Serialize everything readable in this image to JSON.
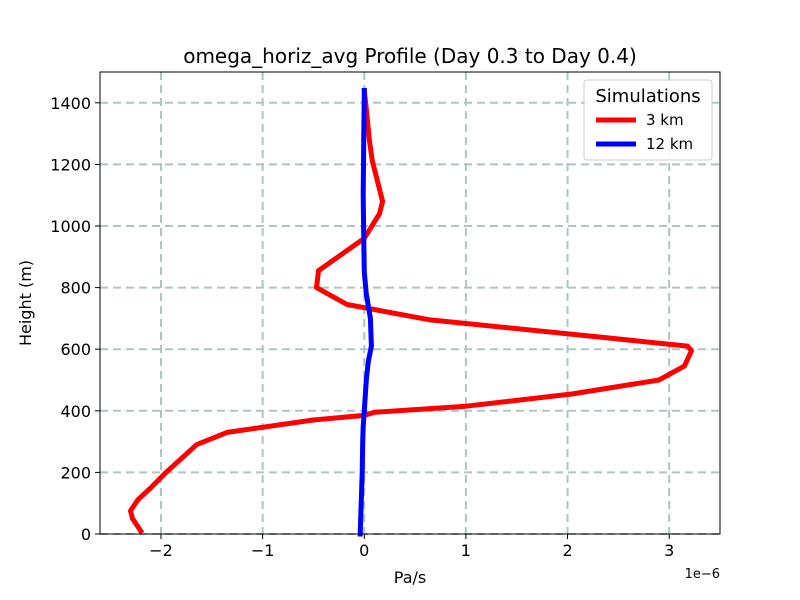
{
  "chart_data": {
    "type": "line",
    "title": "omega_horiz_avg Profile (Day 0.3 to Day 0.4)",
    "xlabel": "Pa/s",
    "ylabel": "Height (m)",
    "x_offset_label": "1e−6",
    "x_scale": 1e-06,
    "xlim": [
      -2.6,
      3.5
    ],
    "ylim": [
      0,
      1500
    ],
    "xticks": [
      -2,
      -1,
      0,
      1,
      2,
      3
    ],
    "xtick_labels": [
      "−2",
      "−1",
      "0",
      "1",
      "2",
      "3"
    ],
    "yticks": [
      0,
      200,
      400,
      600,
      800,
      1000,
      1200,
      1400
    ],
    "ytick_labels": [
      "0",
      "200",
      "400",
      "600",
      "800",
      "1000",
      "1200",
      "1400"
    ],
    "grid": true,
    "legend_title": "Simulations",
    "legend_position": "top-right",
    "series": [
      {
        "name": "3 km",
        "color": "#ff0000",
        "x": [
          -2.2,
          -2.28,
          -2.3,
          -2.23,
          -2.1,
          -1.95,
          -1.65,
          -1.35,
          -0.5,
          0.0,
          0.1,
          1.0,
          2.05,
          2.9,
          3.15,
          3.22,
          3.18,
          2.3,
          0.65,
          -0.17,
          -0.47,
          -0.45,
          0.0,
          0.15,
          0.18,
          0.08,
          0.05,
          0.02,
          0.0
        ],
        "y": [
          10,
          50,
          75,
          110,
          150,
          200,
          290,
          330,
          370,
          385,
          395,
          415,
          455,
          500,
          545,
          595,
          610,
          640,
          695,
          745,
          800,
          855,
          960,
          1040,
          1080,
          1210,
          1280,
          1380,
          1440
        ]
      },
      {
        "name": "12 km",
        "color": "#0000ff",
        "x": [
          -0.04,
          -0.03,
          -0.02,
          -0.015,
          -0.01,
          0.0,
          0.02,
          0.04,
          0.07,
          0.06,
          0.02,
          0.0,
          -0.005,
          -0.01,
          -0.005,
          0.0
        ],
        "y": [
          0,
          100,
          200,
          300,
          350,
          400,
          500,
          560,
          610,
          700,
          780,
          850,
          950,
          1100,
          1300,
          1440
        ]
      }
    ]
  }
}
